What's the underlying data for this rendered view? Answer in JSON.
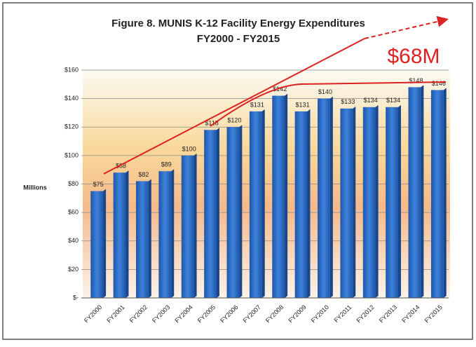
{
  "chart_data": {
    "type": "bar",
    "title": "Figure 8.  MUNIS K-12 Facility Energy Expenditures",
    "subtitle": "FY2000 - FY2015",
    "y_label": "Millions",
    "annotation": "$68M",
    "categories": [
      "FY2000",
      "FY2001",
      "FY2002",
      "FY2003",
      "FY2004",
      "FY2005",
      "FY2006",
      "FY2007",
      "FY2008",
      "FY2009",
      "FY2010",
      "FY2011",
      "FY2012",
      "FY2013",
      "FY2014",
      "FY2015"
    ],
    "values": [
      75,
      88,
      82,
      89,
      100,
      118,
      120,
      131,
      142,
      131,
      140,
      133,
      134,
      134,
      148,
      146
    ],
    "value_labels": [
      "$75",
      "$88",
      "$82",
      "$89",
      "$100",
      "$118",
      "$120",
      "$131",
      "$142",
      "$131",
      "$140",
      "$133",
      "$134",
      "$134",
      "$148",
      "$146"
    ],
    "color": "#2f6fc9",
    "ylim": [
      0,
      160
    ],
    "yticks": [
      {
        "value": 0,
        "label": "$-"
      },
      {
        "value": 20,
        "label": "$20"
      },
      {
        "value": 40,
        "label": "$40"
      },
      {
        "value": 60,
        "label": "$60"
      },
      {
        "value": 80,
        "label": "$80"
      },
      {
        "value": 100,
        "label": "$100"
      },
      {
        "value": 120,
        "label": "$120"
      },
      {
        "value": 140,
        "label": "$140"
      },
      {
        "value": 160,
        "label": "$160"
      }
    ],
    "grid": true
  }
}
